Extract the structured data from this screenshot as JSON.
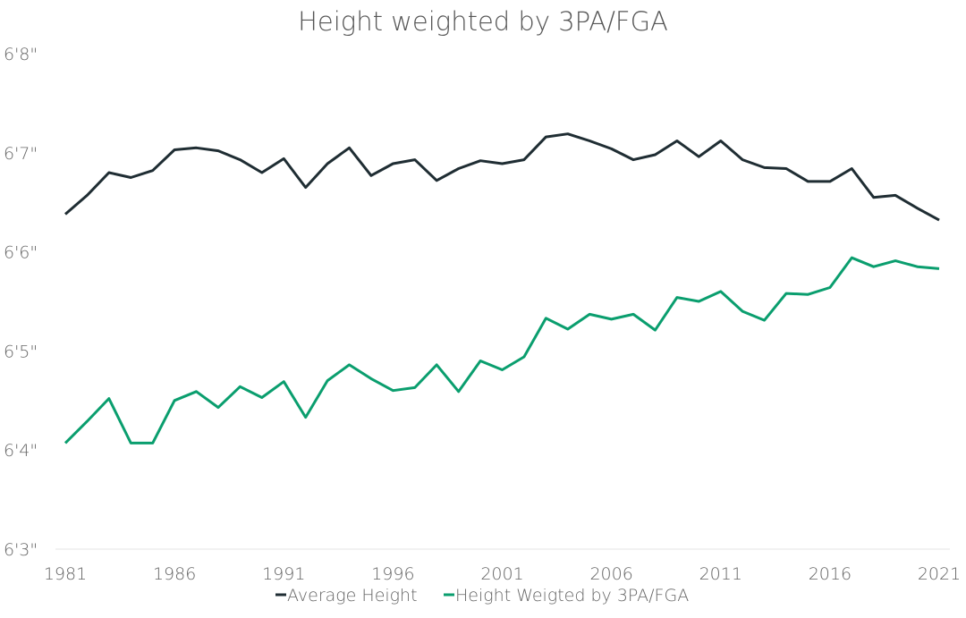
{
  "chart_data": {
    "type": "line",
    "title": "Height weighted by 3PA/FGA",
    "xlabel": "",
    "ylabel": "",
    "unit": "inches",
    "x": [
      1981,
      1982,
      1983,
      1984,
      1985,
      1986,
      1987,
      1988,
      1989,
      1990,
      1991,
      1992,
      1993,
      1994,
      1995,
      1996,
      1997,
      1998,
      1999,
      2000,
      2001,
      2002,
      2003,
      2004,
      2005,
      2006,
      2007,
      2008,
      2009,
      2010,
      2011,
      2012,
      2013,
      2014,
      2015,
      2016,
      2017,
      2018,
      2019,
      2020,
      2021
    ],
    "xlim": [
      1981,
      2021
    ],
    "x_ticks": [
      "1981",
      "1986",
      "1991",
      "1996",
      "2001",
      "2006",
      "2011",
      "2016",
      "2021"
    ],
    "ylim": [
      75,
      80
    ],
    "y_ticks": [
      {
        "value": 75,
        "label": "6'3\""
      },
      {
        "value": 76,
        "label": "6'4\""
      },
      {
        "value": 77,
        "label": "6'5\""
      },
      {
        "value": 78,
        "label": "6'6\""
      },
      {
        "value": 79,
        "label": "6'7\""
      },
      {
        "value": 80,
        "label": "6'8\""
      }
    ],
    "grid": false,
    "legend_position": "bottom",
    "series": [
      {
        "name": "Average Height",
        "color": "#1f2d33",
        "values": [
          78.38,
          78.57,
          78.8,
          78.75,
          78.82,
          79.03,
          79.05,
          79.02,
          78.93,
          78.8,
          78.94,
          78.65,
          78.89,
          79.05,
          78.77,
          78.89,
          78.93,
          78.72,
          78.84,
          78.92,
          78.89,
          78.93,
          79.16,
          79.19,
          79.12,
          79.04,
          78.93,
          78.98,
          79.12,
          78.96,
          79.12,
          78.93,
          78.85,
          78.84,
          78.71,
          78.71,
          78.84,
          78.55,
          78.57,
          78.44,
          78.32
        ]
      },
      {
        "name": "Height Weigted by 3PA/FGA",
        "color": "#0a9e6e",
        "values": [
          76.07,
          76.29,
          76.52,
          76.07,
          76.07,
          76.5,
          76.59,
          76.43,
          76.64,
          76.53,
          76.69,
          76.33,
          76.7,
          76.86,
          76.72,
          76.6,
          76.63,
          76.86,
          76.59,
          76.9,
          76.81,
          76.94,
          77.33,
          77.22,
          77.37,
          77.32,
          77.37,
          77.21,
          77.54,
          77.5,
          77.6,
          77.4,
          77.31,
          77.58,
          77.57,
          77.64,
          77.94,
          77.85,
          77.91,
          77.85,
          77.83
        ]
      }
    ]
  }
}
